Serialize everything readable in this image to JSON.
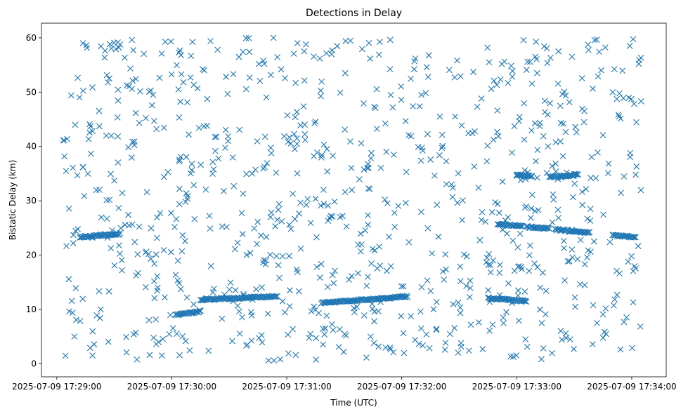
{
  "chart_data": {
    "type": "scatter",
    "title": "Detections in Delay",
    "xlabel": "Time (UTC)",
    "ylabel": "Bistatic Delay (km)",
    "marker": "x",
    "color": "#1f77b4",
    "grid": false,
    "legend": "none",
    "xlim": [
      "2025-07-09 17:28:52",
      "2025-07-09 17:34:18"
    ],
    "ylim": [
      -2.4,
      62.7
    ],
    "x_ticks": [
      "2025-07-09 17:29:00",
      "2025-07-09 17:30:00",
      "2025-07-09 17:31:00",
      "2025-07-09 17:32:00",
      "2025-07-09 17:33:00",
      "2025-07-09 17:34:00"
    ],
    "y_ticks": [
      "0",
      "10",
      "20",
      "30",
      "40",
      "50",
      "60"
    ],
    "track_series": [
      {
        "start": "2025-07-09 17:29:12",
        "end": "2025-07-09 17:29:33",
        "delay_start": 23.3,
        "delay_end": 23.9
      },
      {
        "start": "2025-07-09 17:30:02",
        "end": "2025-07-09 17:30:15",
        "delay_start": 9.0,
        "delay_end": 9.6
      },
      {
        "start": "2025-07-09 17:30:15",
        "end": "2025-07-09 17:30:55",
        "delay_start": 11.8,
        "delay_end": 12.4
      },
      {
        "start": "2025-07-09 17:31:18",
        "end": "2025-07-09 17:32:03",
        "delay_start": 11.2,
        "delay_end": 12.4
      },
      {
        "start": "2025-07-09 17:32:50",
        "end": "2025-07-09 17:33:03",
        "delay_start": 25.7,
        "delay_end": 25.3
      },
      {
        "start": "2025-07-09 17:33:05",
        "end": "2025-07-09 17:33:17",
        "delay_start": 25.2,
        "delay_end": 24.9
      },
      {
        "start": "2025-07-09 17:33:20",
        "end": "2025-07-09 17:33:38",
        "delay_start": 24.7,
        "delay_end": 24.1
      },
      {
        "start": "2025-07-09 17:33:17",
        "end": "2025-07-09 17:33:32",
        "delay_start": 34.4,
        "delay_end": 34.8
      },
      {
        "start": "2025-07-09 17:33:00",
        "end": "2025-07-09 17:33:08",
        "delay_start": 34.8,
        "delay_end": 34.5
      },
      {
        "start": "2025-07-09 17:32:45",
        "end": "2025-07-09 17:33:05",
        "delay_start": 12.1,
        "delay_end": 11.5
      },
      {
        "start": "2025-07-09 17:33:50",
        "end": "2025-07-09 17:34:02",
        "delay_start": 23.6,
        "delay_end": 23.3
      }
    ],
    "noise_detections": {
      "count": 900,
      "time_range": [
        "2025-07-09 17:29:03",
        "2025-07-09 17:34:05"
      ],
      "delay_range": [
        0.5,
        60
      ]
    }
  }
}
